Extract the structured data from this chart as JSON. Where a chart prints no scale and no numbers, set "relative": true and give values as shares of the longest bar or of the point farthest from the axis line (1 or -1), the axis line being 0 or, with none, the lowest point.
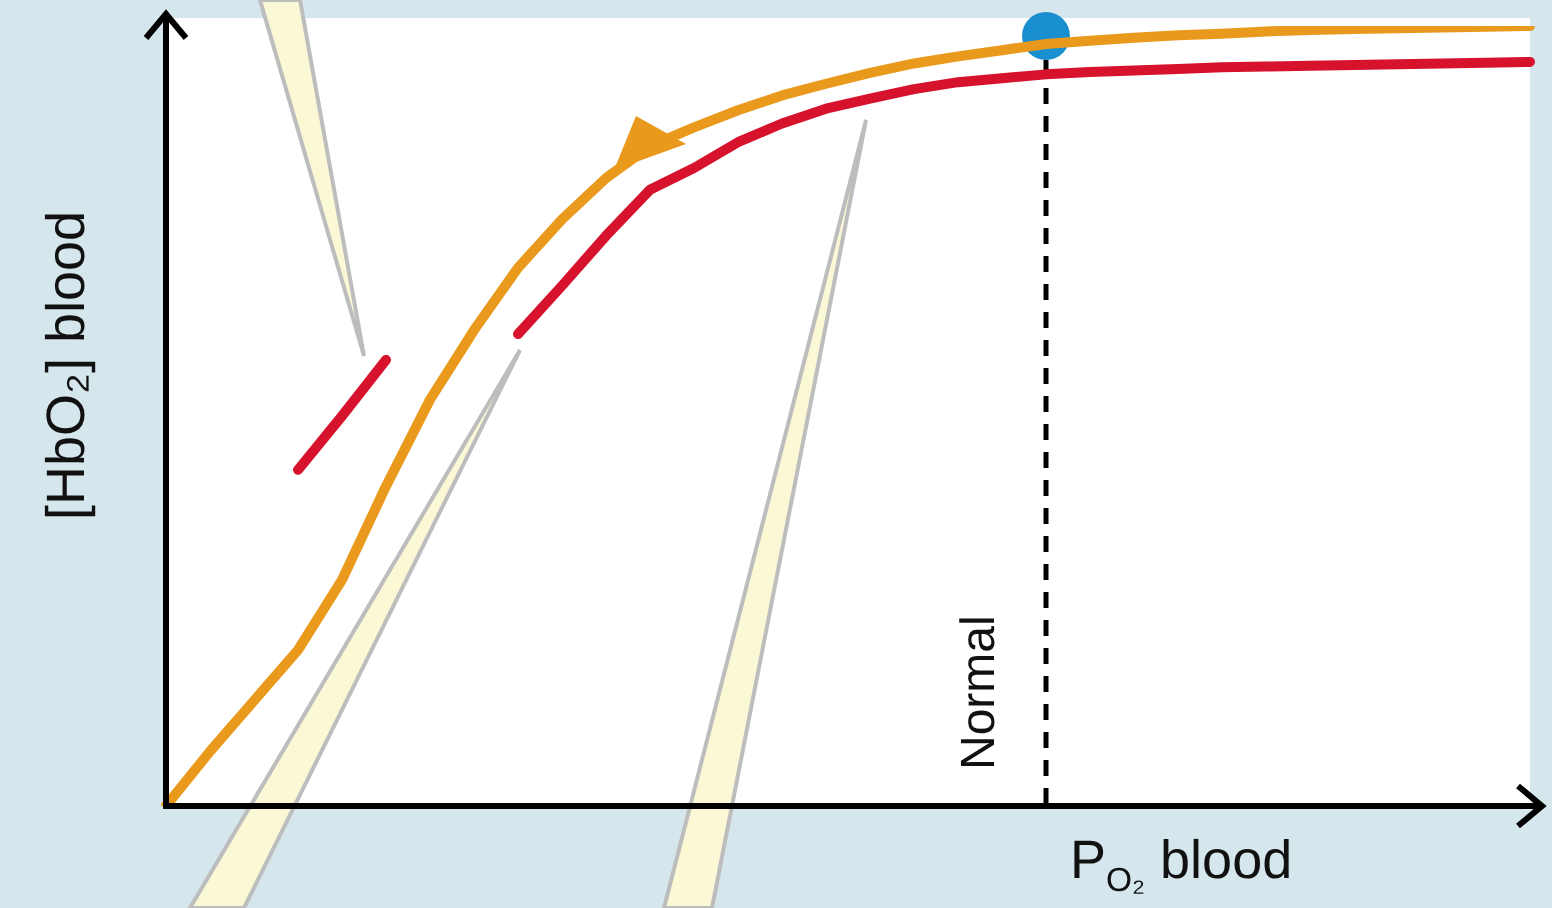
{
  "chart_data": {
    "type": "line",
    "relative": true,
    "xlabel": "P$_{O₂}$ blood",
    "ylabel": "[HbO₂] blood",
    "legend": false,
    "marker": "none",
    "line_style": "solid",
    "categories": [
      null,
      null,
      null,
      null,
      null,
      null,
      null,
      null,
      null,
      null,
      null,
      null,
      null,
      null,
      null,
      null,
      null,
      null,
      null,
      null,
      null,
      null,
      null,
      null,
      null,
      null,
      null,
      null,
      null,
      null,
      null,
      null
    ],
    "series": [
      {
        "color": "#e99a1c",
        "values": [
          0,
          0.07,
          0.135,
          0.2,
          0.29,
          0.41,
          0.521,
          0.61,
          0.69,
          0.752,
          0.805,
          0.846,
          0.87,
          0.892,
          0.911,
          0.926,
          0.94,
          0.952,
          0.961,
          0.969,
          0.977,
          0.981,
          0.985,
          0.988,
          0.99,
          0.993,
          0.995,
          0.996,
          0.997,
          0.998,
          0.999,
          1
        ]
      },
      {
        "color": "#d7122d",
        "values": [
          null,
          null,
          null,
          0.431,
          0.5,
          0.572,
          null,
          null,
          0.605,
          0.667,
          0.731,
          0.79,
          0.818,
          0.851,
          0.875,
          0.894,
          0.907,
          0.919,
          0.928,
          0.933,
          0.938,
          0.941,
          0.943,
          0.945,
          0.947,
          0.948,
          0.949,
          0.95,
          0.951,
          0.952,
          0.953,
          0.954
        ]
      }
    ],
    "annotations": [
      "Normal"
    ]
  }
}
